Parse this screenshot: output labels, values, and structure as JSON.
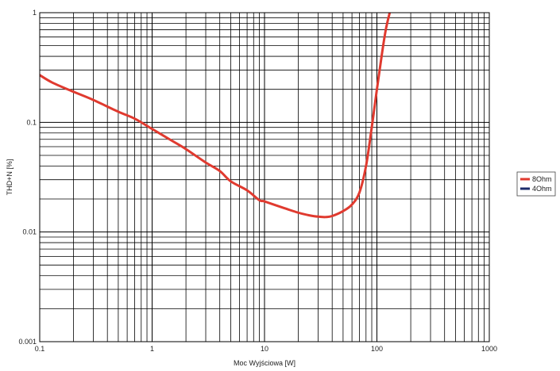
{
  "chart_data": {
    "type": "line",
    "title": "",
    "xlabel": "Moc Wyjściowa [W]",
    "ylabel": "THD+N [%]",
    "x_scale": "log",
    "y_scale": "log",
    "xlim": [
      0.1,
      1000
    ],
    "ylim": [
      0.001,
      1
    ],
    "x_ticks": [
      "0.1",
      "1",
      "10",
      "100",
      "1000"
    ],
    "y_ticks": [
      "1",
      "0.1",
      "0.01",
      "0.001"
    ],
    "grid": true,
    "legend_position": "right",
    "series": [
      {
        "name": "8Ohm",
        "color": "#e03a2f",
        "x": [
          0.1,
          0.13,
          0.2,
          0.3,
          0.5,
          0.7,
          1,
          1.5,
          2,
          3,
          4,
          5,
          7,
          9,
          10,
          15,
          20,
          25,
          30,
          35,
          40,
          50,
          60,
          70,
          80,
          90,
          100,
          110,
          120,
          130
        ],
        "y": [
          0.27,
          0.23,
          0.19,
          0.16,
          0.125,
          0.108,
          0.087,
          0.068,
          0.057,
          0.043,
          0.036,
          0.029,
          0.024,
          0.0195,
          0.019,
          0.0165,
          0.015,
          0.0142,
          0.0138,
          0.0137,
          0.014,
          0.0155,
          0.0178,
          0.023,
          0.04,
          0.09,
          0.2,
          0.4,
          0.7,
          1.0
        ]
      },
      {
        "name": "4Ohm",
        "color": "#1c2b6b",
        "x": [],
        "y": []
      }
    ]
  }
}
